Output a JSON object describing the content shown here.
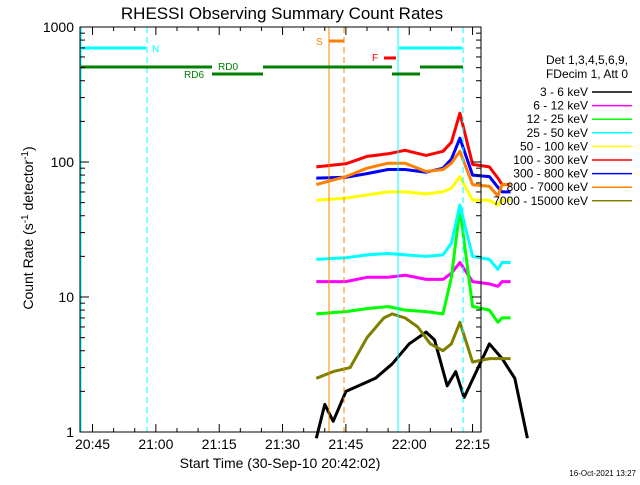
{
  "chart_data": {
    "type": "line",
    "title": "RHESSI Observing Summary Count Rates",
    "xlabel": "Start Time (30-Sep-10 20:42:02)",
    "ylabel_main": "Count Rate (s",
    "ylabel_sup": "-1",
    "ylabel_mid": " detector",
    "ylabel_end": ")",
    "yscale": "log",
    "ylim": [
      1,
      1000
    ],
    "xlim": [
      "20:42:02",
      "22:17:00"
    ],
    "x_ticks": [
      "20:45",
      "21:00",
      "21:15",
      "21:30",
      "21:45",
      "22:00",
      "22:15"
    ],
    "y_ticks": [
      "1",
      "10",
      "100",
      "1000"
    ],
    "legend_header": [
      "Det 1,3,4,5,6,9,",
      "FDecim 1, Att 0"
    ],
    "footer_date": "16-Oct-2021 13:27",
    "flags": {
      "N": "N",
      "RD0": "RD0",
      "RD6": "RD6",
      "S": "S",
      "F": "F"
    },
    "series": [
      {
        "name": "3 - 6 keV",
        "color": "#000000",
        "values": [
          [
            58,
            0.9
          ],
          [
            60,
            1.6
          ],
          [
            62,
            1.2
          ],
          [
            65,
            2.0
          ],
          [
            72,
            2.5
          ],
          [
            76,
            3.2
          ],
          [
            80,
            4.5
          ],
          [
            84,
            5.5
          ],
          [
            86,
            4.8
          ],
          [
            89,
            2.2
          ],
          [
            91,
            2.8
          ],
          [
            93,
            1.8
          ],
          [
            99,
            4.5
          ],
          [
            102,
            3.5
          ],
          [
            105,
            2.5
          ],
          [
            108,
            0.9
          ]
        ]
      },
      {
        "name": "6 - 12 keV",
        "color": "#ff00ff",
        "values": [
          [
            58,
            13
          ],
          [
            65,
            13
          ],
          [
            70,
            14
          ],
          [
            75,
            14
          ],
          [
            79,
            14.5
          ],
          [
            84,
            13.5
          ],
          [
            88,
            13.5
          ],
          [
            90,
            15
          ],
          [
            92,
            18
          ],
          [
            95,
            13
          ],
          [
            99,
            12.5
          ],
          [
            101,
            12
          ],
          [
            102,
            13
          ],
          [
            104,
            13
          ]
        ]
      },
      {
        "name": "12 - 25 keV",
        "color": "#00ff00",
        "values": [
          [
            58,
            7.5
          ],
          [
            65,
            7.8
          ],
          [
            70,
            8.2
          ],
          [
            75,
            8.5
          ],
          [
            79,
            8
          ],
          [
            84,
            7.8
          ],
          [
            88,
            7.5
          ],
          [
            90,
            14
          ],
          [
            92,
            45
          ],
          [
            95,
            8.5
          ],
          [
            99,
            8
          ],
          [
            101,
            6.5
          ],
          [
            102,
            7
          ],
          [
            104,
            7
          ]
        ]
      },
      {
        "name": "25 - 50 keV",
        "color": "#00ffff",
        "values": [
          [
            58,
            19
          ],
          [
            65,
            19.5
          ],
          [
            70,
            20.5
          ],
          [
            75,
            21
          ],
          [
            79,
            20.5
          ],
          [
            84,
            20
          ],
          [
            88,
            20.5
          ],
          [
            90,
            25
          ],
          [
            92,
            48
          ],
          [
            95,
            20
          ],
          [
            99,
            19
          ],
          [
            101,
            16
          ],
          [
            102,
            18
          ],
          [
            104,
            18
          ]
        ]
      },
      {
        "name": "50 - 100 keV",
        "color": "#ffff00",
        "values": [
          [
            58,
            52
          ],
          [
            65,
            54
          ],
          [
            70,
            57
          ],
          [
            75,
            60
          ],
          [
            79,
            60
          ],
          [
            84,
            58
          ],
          [
            88,
            60
          ],
          [
            90,
            64
          ],
          [
            92,
            78
          ],
          [
            95,
            52
          ],
          [
            99,
            52
          ],
          [
            101,
            48
          ],
          [
            102,
            52
          ],
          [
            104,
            52
          ]
        ]
      },
      {
        "name": "100 - 300 keV",
        "color": "#ff0000",
        "values": [
          [
            58,
            92
          ],
          [
            65,
            97
          ],
          [
            70,
            110
          ],
          [
            75,
            115
          ],
          [
            79,
            122
          ],
          [
            84,
            112
          ],
          [
            88,
            120
          ],
          [
            90,
            140
          ],
          [
            92,
            230
          ],
          [
            95,
            96
          ],
          [
            99,
            92
          ],
          [
            101,
            76
          ],
          [
            102,
            68
          ],
          [
            104,
            68
          ]
        ]
      },
      {
        "name": "300 - 800 keV",
        "color": "#0000ff",
        "values": [
          [
            58,
            76
          ],
          [
            65,
            77
          ],
          [
            70,
            82
          ],
          [
            75,
            88
          ],
          [
            79,
            88
          ],
          [
            84,
            84
          ],
          [
            88,
            90
          ],
          [
            90,
            105
          ],
          [
            92,
            150
          ],
          [
            95,
            80
          ],
          [
            99,
            78
          ],
          [
            101,
            65
          ],
          [
            102,
            60
          ],
          [
            104,
            60
          ]
        ]
      },
      {
        "name": "800 - 7000 keV",
        "color": "#ff8000",
        "values": [
          [
            58,
            68
          ],
          [
            65,
            78
          ],
          [
            70,
            90
          ],
          [
            75,
            98
          ],
          [
            79,
            98
          ],
          [
            84,
            85
          ],
          [
            88,
            88
          ],
          [
            90,
            98
          ],
          [
            92,
            120
          ],
          [
            95,
            68
          ],
          [
            99,
            66
          ],
          [
            101,
            56
          ],
          [
            102,
            68
          ],
          [
            104,
            68
          ]
        ]
      },
      {
        "name": "7000 - 15000 keV",
        "color": "#808000",
        "values": [
          [
            58,
            2.5
          ],
          [
            62,
            2.8
          ],
          [
            66,
            3.0
          ],
          [
            70,
            5.0
          ],
          [
            74,
            7.0
          ],
          [
            76,
            7.5
          ],
          [
            79,
            7.0
          ],
          [
            82,
            6.0
          ],
          [
            85,
            4.5
          ],
          [
            88,
            4.0
          ],
          [
            90,
            4.5
          ],
          [
            92,
            6.5
          ],
          [
            95,
            3.3
          ],
          [
            99,
            3.5
          ],
          [
            101,
            3.5
          ],
          [
            102,
            3.5
          ],
          [
            104,
            3.5
          ]
        ]
      }
    ]
  }
}
